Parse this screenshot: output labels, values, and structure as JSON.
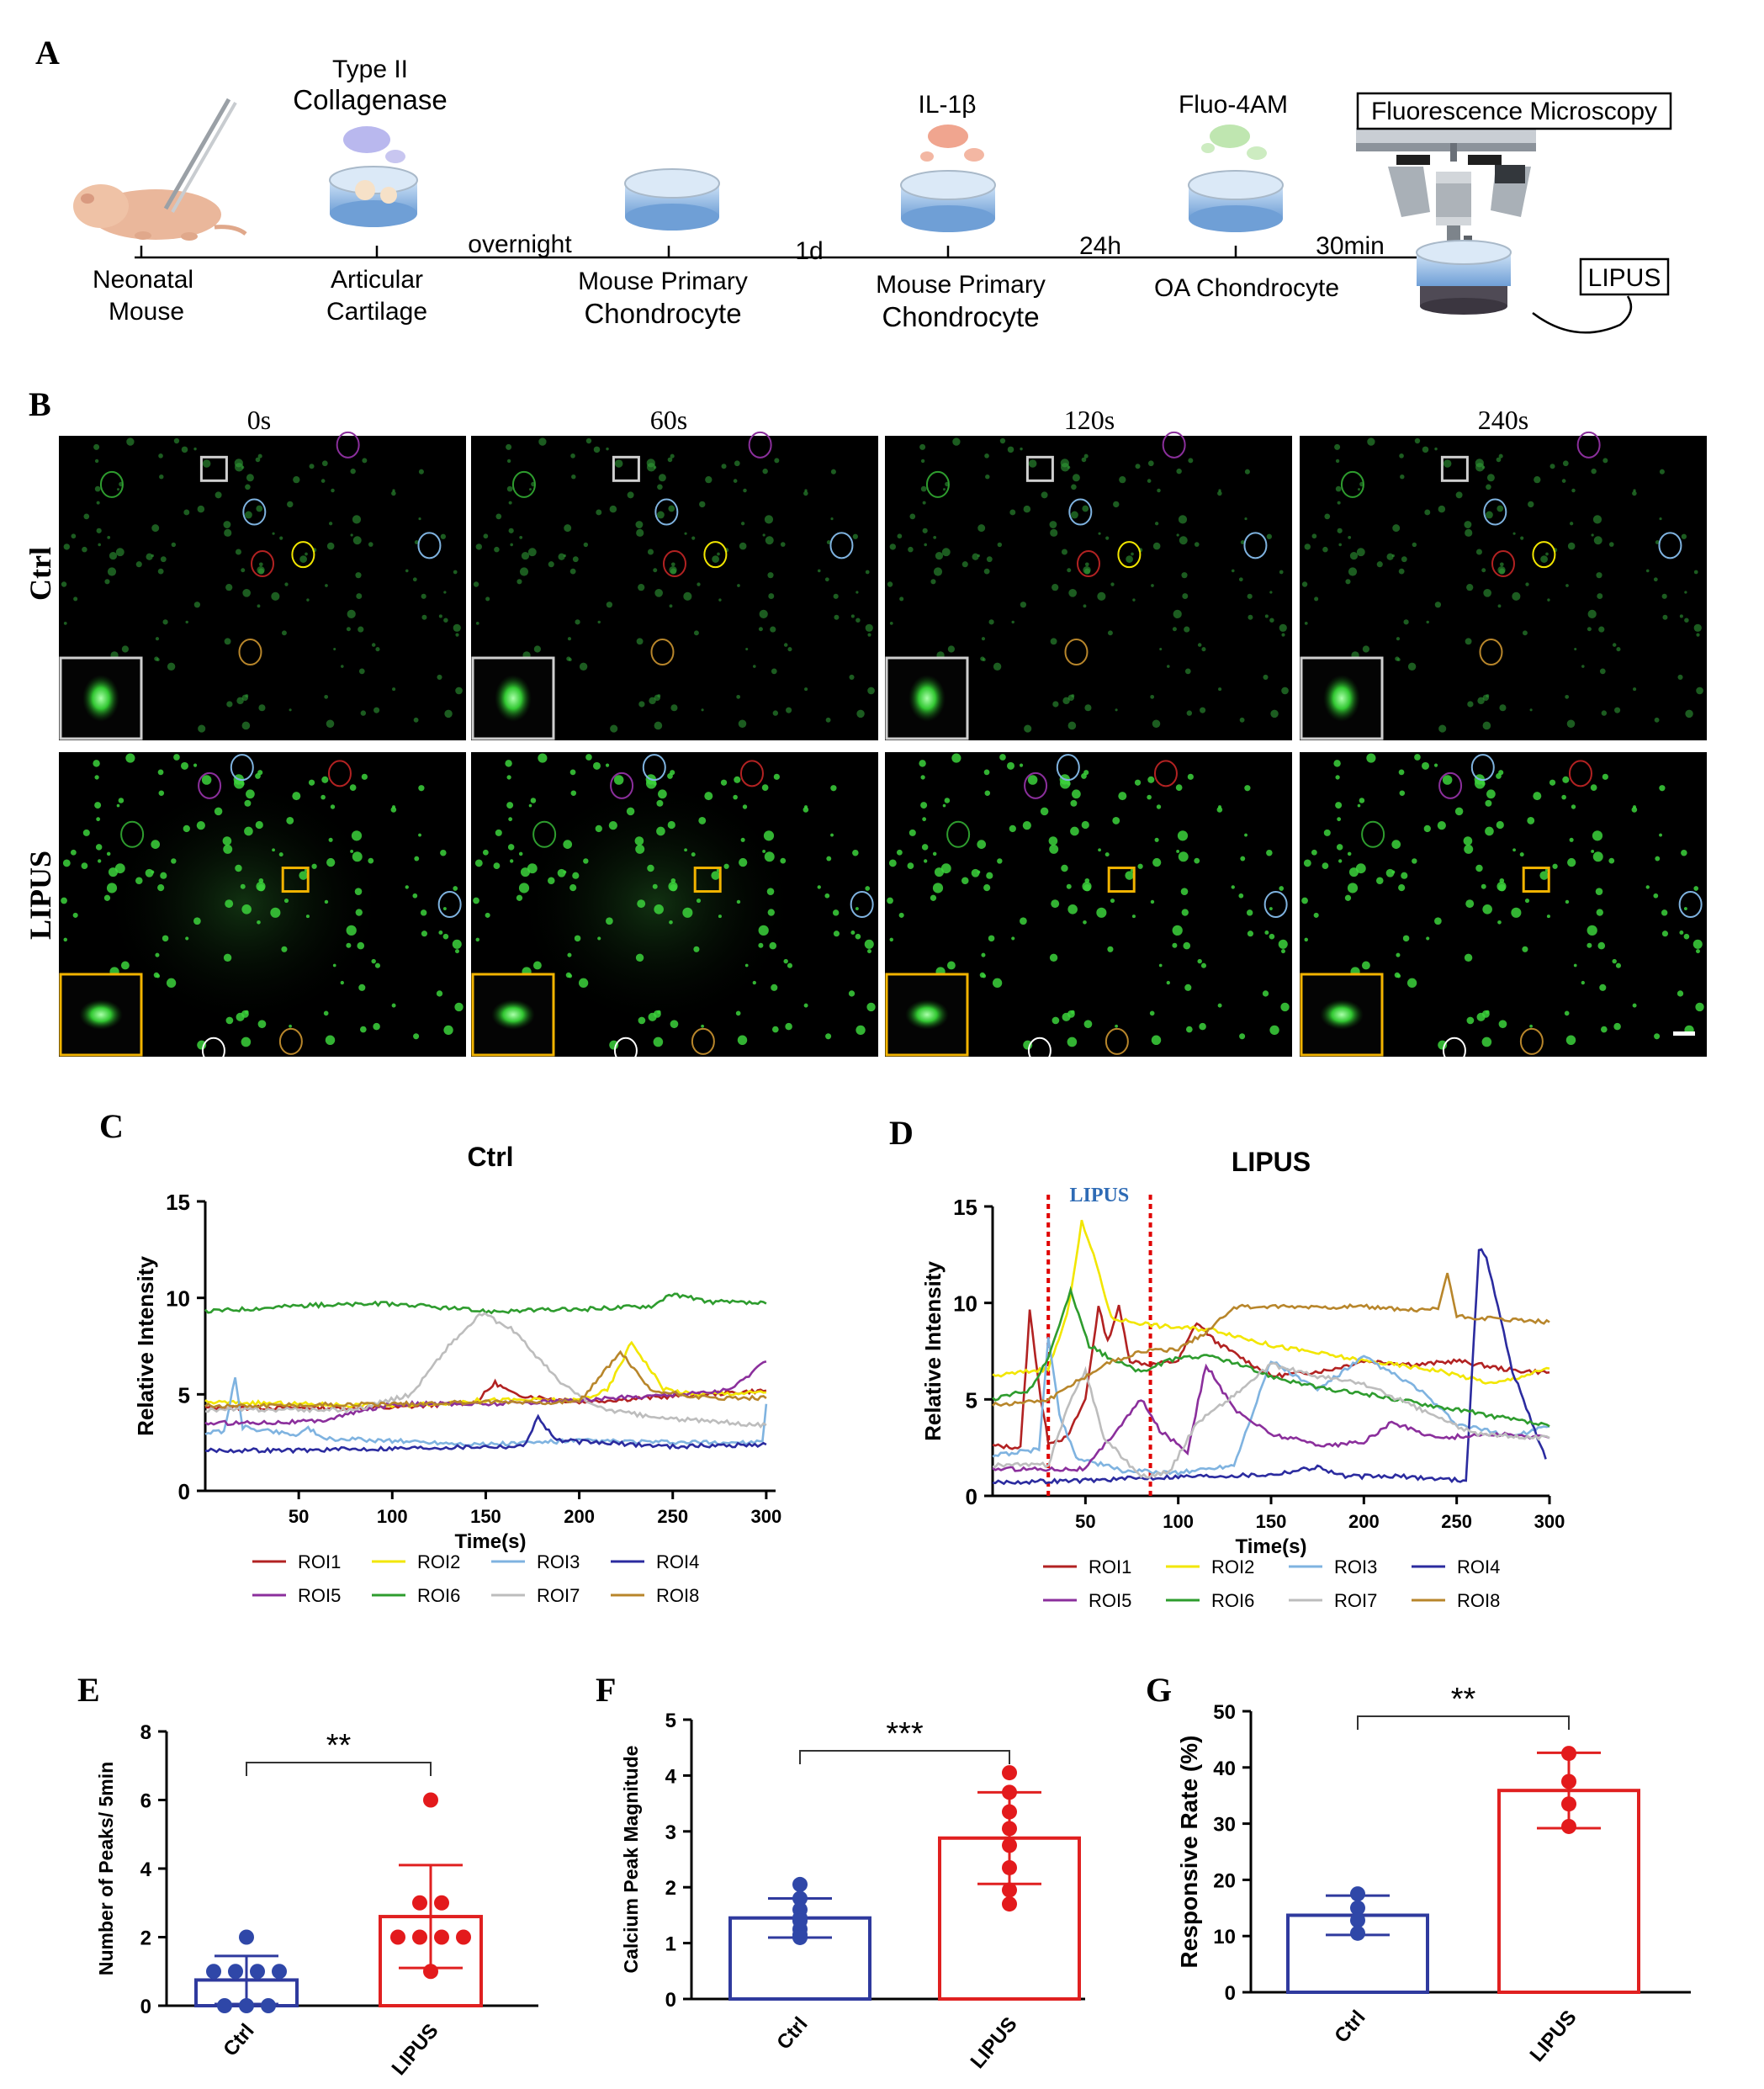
{
  "panels": {
    "A": "A",
    "B": "B",
    "C": "C",
    "D": "D",
    "E": "E",
    "F": "F",
    "G": "G"
  },
  "colors": {
    "ROI1": "#b22222",
    "ROI2": "#f2e600",
    "ROI3": "#7fb3e0",
    "ROI4": "#2b2b9f",
    "ROI5": "#8b2f9c",
    "ROI6": "#2e9c2e",
    "ROI7": "#bdbdbd",
    "ROI8": "#b8862b",
    "ctrl_bar": "#2f3a9e",
    "ctrl_dot": "#2f47a8",
    "lipus_bar": "#e02020",
    "lipus_dot": "#e31a1c",
    "lipus_text": "#2e6bb5"
  },
  "workflow": {
    "stages": [
      {
        "top": "",
        "bottom": [
          "Neonatal",
          "Mouse"
        ]
      },
      {
        "top": "Type II\nCollagenase",
        "bottom": [
          "Articular",
          "Cartilage"
        ]
      },
      {
        "top": "",
        "bottom": [
          "Mouse Primary",
          "Chondrocyte"
        ]
      },
      {
        "top": "IL-1β",
        "bottom": [
          "Mouse Primary",
          "Chondrocyte"
        ]
      },
      {
        "top": "Fluo-4AM",
        "bottom": [
          "OA Chondrocyte"
        ]
      }
    ],
    "stage_top_lines": [
      [
        "Type II",
        "Collagenase"
      ],
      [
        "IL-1β"
      ],
      [
        "Fluo-4AM"
      ]
    ],
    "durations": [
      "overnight",
      "1d",
      "24h",
      "30min"
    ],
    "microscope_label": "Fluorescence Microscopy",
    "lipus_label": "LIPUS"
  },
  "imaging": {
    "timepoints": [
      "0s",
      "60s",
      "120s",
      "240s"
    ],
    "rows": [
      "Ctrl",
      "LIPUS"
    ]
  },
  "chart_data": [
    {
      "id": "C",
      "type": "line",
      "title": "Ctrl",
      "xlabel": "Time(s)",
      "ylabel": "Relative Intensity",
      "xlim": [
        0,
        305
      ],
      "ylim": [
        0,
        15
      ],
      "xticks": [
        50,
        100,
        150,
        200,
        250,
        300
      ],
      "yticks": [
        0,
        5,
        10,
        15
      ],
      "series": [
        {
          "name": "ROI1",
          "points": [
            [
              0,
              4.3
            ],
            [
              100,
              4.3
            ],
            [
              145,
              4.6
            ],
            [
              155,
              5.6
            ],
            [
              165,
              5.0
            ],
            [
              200,
              4.6
            ],
            [
              250,
              4.9
            ],
            [
              300,
              5.2
            ]
          ]
        },
        {
          "name": "ROI2",
          "points": [
            [
              0,
              4.6
            ],
            [
              100,
              4.4
            ],
            [
              150,
              4.7
            ],
            [
              200,
              4.7
            ],
            [
              215,
              5.2
            ],
            [
              228,
              7.7
            ],
            [
              245,
              5.3
            ],
            [
              260,
              5.0
            ],
            [
              300,
              5.1
            ]
          ]
        },
        {
          "name": "ROI3",
          "points": [
            [
              0,
              3.0
            ],
            [
              10,
              3.1
            ],
            [
              16,
              5.8
            ],
            [
              20,
              3.3
            ],
            [
              50,
              2.9
            ],
            [
              55,
              3.3
            ],
            [
              62,
              2.7
            ],
            [
              100,
              2.6
            ],
            [
              150,
              2.4
            ],
            [
              200,
              2.6
            ],
            [
              250,
              2.5
            ],
            [
              298,
              2.5
            ],
            [
              300,
              4.5
            ]
          ]
        },
        {
          "name": "ROI4",
          "points": [
            [
              0,
              2.1
            ],
            [
              50,
              2.1
            ],
            [
              100,
              2.2
            ],
            [
              150,
              2.3
            ],
            [
              170,
              2.3
            ],
            [
              178,
              3.8
            ],
            [
              188,
              2.6
            ],
            [
              250,
              2.3
            ],
            [
              300,
              2.4
            ]
          ]
        },
        {
          "name": "ROI5",
          "points": [
            [
              0,
              3.5
            ],
            [
              60,
              3.6
            ],
            [
              100,
              4.5
            ],
            [
              150,
              4.5
            ],
            [
              200,
              4.7
            ],
            [
              250,
              5.0
            ],
            [
              280,
              5.2
            ],
            [
              300,
              6.7
            ]
          ]
        },
        {
          "name": "ROI6",
          "points": [
            [
              0,
              9.3
            ],
            [
              50,
              9.6
            ],
            [
              100,
              9.7
            ],
            [
              150,
              9.3
            ],
            [
              200,
              9.4
            ],
            [
              240,
              9.6
            ],
            [
              248,
              10.2
            ],
            [
              270,
              9.8
            ],
            [
              300,
              9.7
            ]
          ]
        },
        {
          "name": "ROI7",
          "points": [
            [
              0,
              4.2
            ],
            [
              80,
              4.2
            ],
            [
              110,
              5.0
            ],
            [
              130,
              7.5
            ],
            [
              148,
              9.2
            ],
            [
              165,
              8.3
            ],
            [
              190,
              5.6
            ],
            [
              210,
              4.3
            ],
            [
              240,
              3.8
            ],
            [
              300,
              3.4
            ]
          ]
        },
        {
          "name": "ROI8",
          "points": [
            [
              0,
              4.4
            ],
            [
              100,
              4.5
            ],
            [
              150,
              4.6
            ],
            [
              200,
              4.6
            ],
            [
              222,
              7.2
            ],
            [
              238,
              5.2
            ],
            [
              270,
              4.8
            ],
            [
              300,
              4.8
            ]
          ]
        }
      ]
    },
    {
      "id": "D",
      "type": "line",
      "title": "LIPUS",
      "xlabel": "Time(s)",
      "ylabel": "Relative Intensity",
      "annotation": "LIPUS",
      "annotation_range": [
        30,
        85
      ],
      "xlim": [
        0,
        300
      ],
      "ylim": [
        0,
        15
      ],
      "xticks": [
        50,
        100,
        150,
        200,
        250,
        300
      ],
      "yticks": [
        0,
        5,
        10,
        15
      ],
      "series": [
        {
          "name": "ROI1",
          "points": [
            [
              0,
              2.6
            ],
            [
              15,
              2.5
            ],
            [
              20,
              9.6
            ],
            [
              26,
              5.0
            ],
            [
              30,
              2.8
            ],
            [
              40,
              3.0
            ],
            [
              50,
              5.0
            ],
            [
              57,
              9.8
            ],
            [
              62,
              8.0
            ],
            [
              68,
              9.8
            ],
            [
              74,
              7.0
            ],
            [
              85,
              6.8
            ],
            [
              100,
              7.0
            ],
            [
              110,
              9.0
            ],
            [
              120,
              8.0
            ],
            [
              150,
              6.2
            ],
            [
              180,
              6.5
            ],
            [
              200,
              7.0
            ],
            [
              230,
              6.8
            ],
            [
              250,
              7.0
            ],
            [
              280,
              6.5
            ],
            [
              300,
              6.4
            ]
          ]
        },
        {
          "name": "ROI2",
          "points": [
            [
              0,
              6.2
            ],
            [
              30,
              6.6
            ],
            [
              40,
              9.3
            ],
            [
              48,
              14.2
            ],
            [
              56,
              12.0
            ],
            [
              64,
              9.2
            ],
            [
              90,
              8.8
            ],
            [
              120,
              8.6
            ],
            [
              150,
              7.8
            ],
            [
              200,
              7.0
            ],
            [
              240,
              6.5
            ],
            [
              270,
              5.8
            ],
            [
              300,
              6.6
            ]
          ]
        },
        {
          "name": "ROI3",
          "points": [
            [
              0,
              2.1
            ],
            [
              25,
              2.4
            ],
            [
              30,
              8.3
            ],
            [
              36,
              4.2
            ],
            [
              45,
              2.0
            ],
            [
              70,
              1.3
            ],
            [
              100,
              1.2
            ],
            [
              130,
              1.6
            ],
            [
              150,
              7.0
            ],
            [
              175,
              5.5
            ],
            [
              200,
              7.2
            ],
            [
              230,
              5.5
            ],
            [
              250,
              3.7
            ],
            [
              280,
              3.1
            ],
            [
              300,
              3.6
            ]
          ]
        },
        {
          "name": "ROI4",
          "points": [
            [
              0,
              0.7
            ],
            [
              50,
              0.8
            ],
            [
              100,
              1.0
            ],
            [
              150,
              1.1
            ],
            [
              175,
              1.5
            ],
            [
              190,
              1.0
            ],
            [
              220,
              1.0
            ],
            [
              255,
              0.8
            ],
            [
              262,
              12.8
            ],
            [
              266,
              12.4
            ],
            [
              280,
              6.5
            ],
            [
              298,
              1.9
            ]
          ]
        },
        {
          "name": "ROI5",
          "points": [
            [
              0,
              1.4
            ],
            [
              50,
              1.4
            ],
            [
              80,
              5.0
            ],
            [
              90,
              3.4
            ],
            [
              105,
              2.3
            ],
            [
              115,
              6.8
            ],
            [
              130,
              4.5
            ],
            [
              150,
              3.2
            ],
            [
              180,
              2.6
            ],
            [
              200,
              2.8
            ],
            [
              215,
              3.8
            ],
            [
              240,
              3.0
            ],
            [
              270,
              3.2
            ],
            [
              300,
              3.0
            ]
          ]
        },
        {
          "name": "ROI6",
          "points": [
            [
              0,
              5.0
            ],
            [
              20,
              5.5
            ],
            [
              30,
              7.2
            ],
            [
              42,
              10.6
            ],
            [
              52,
              7.8
            ],
            [
              62,
              7.2
            ],
            [
              80,
              6.4
            ],
            [
              100,
              7.2
            ],
            [
              120,
              7.2
            ],
            [
              150,
              6.2
            ],
            [
              180,
              5.5
            ],
            [
              200,
              5.3
            ],
            [
              230,
              4.8
            ],
            [
              260,
              4.3
            ],
            [
              300,
              3.6
            ]
          ]
        },
        {
          "name": "ROI7",
          "points": [
            [
              0,
              1.6
            ],
            [
              30,
              1.6
            ],
            [
              40,
              4.5
            ],
            [
              50,
              6.5
            ],
            [
              60,
              3.0
            ],
            [
              80,
              1.0
            ],
            [
              95,
              1.2
            ],
            [
              110,
              3.8
            ],
            [
              130,
              5.2
            ],
            [
              150,
              6.8
            ],
            [
              175,
              6.2
            ],
            [
              200,
              5.8
            ],
            [
              230,
              4.5
            ],
            [
              260,
              3.2
            ],
            [
              300,
              3.0
            ]
          ]
        },
        {
          "name": "ROI8",
          "points": [
            [
              0,
              4.7
            ],
            [
              30,
              5.0
            ],
            [
              60,
              6.8
            ],
            [
              80,
              7.5
            ],
            [
              100,
              7.6
            ],
            [
              115,
              8.5
            ],
            [
              130,
              9.8
            ],
            [
              200,
              9.8
            ],
            [
              230,
              9.6
            ],
            [
              240,
              9.7
            ],
            [
              245,
              11.6
            ],
            [
              250,
              9.3
            ],
            [
              300,
              9.0
            ]
          ]
        }
      ]
    },
    {
      "id": "E",
      "type": "bar",
      "ylabel": "Number of Peaks/ 5min",
      "ylim": [
        0,
        8
      ],
      "yticks": [
        0,
        2,
        4,
        6,
        8
      ],
      "categories": [
        "Ctrl",
        "LIPUS"
      ],
      "values": [
        0.75,
        2.6
      ],
      "sd": [
        0.7,
        1.5
      ],
      "points": [
        [
          2,
          1,
          1,
          1,
          1,
          0,
          0,
          0
        ],
        [
          6,
          3,
          3,
          2,
          2,
          2,
          2,
          1
        ]
      ],
      "significance": "**"
    },
    {
      "id": "F",
      "type": "bar",
      "ylabel": "Calcium Peak Magnitude",
      "ylim": [
        0,
        5
      ],
      "yticks": [
        0,
        1,
        2,
        3,
        4,
        5
      ],
      "categories": [
        "Ctrl",
        "LIPUS"
      ],
      "values": [
        1.45,
        2.88
      ],
      "sd": [
        0.35,
        0.82
      ],
      "points": [
        [
          2.05,
          1.8,
          1.6,
          1.45,
          1.4,
          1.25,
          1.15,
          1.1
        ],
        [
          4.05,
          3.7,
          3.35,
          3.05,
          2.75,
          2.35,
          1.95,
          1.7
        ]
      ],
      "significance": "***"
    },
    {
      "id": "G",
      "type": "bar",
      "ylabel": "Responsive Rate (%)",
      "ylim": [
        0,
        50
      ],
      "yticks": [
        0,
        10,
        20,
        30,
        40,
        50
      ],
      "categories": [
        "Ctrl",
        "LIPUS"
      ],
      "values": [
        13.7,
        35.9
      ],
      "sd": [
        3.5,
        6.7
      ],
      "points": [
        [
          17.5,
          15,
          12.8,
          10.5
        ],
        [
          42.5,
          37.5,
          33.5,
          29.5
        ]
      ],
      "significance": "**"
    }
  ]
}
